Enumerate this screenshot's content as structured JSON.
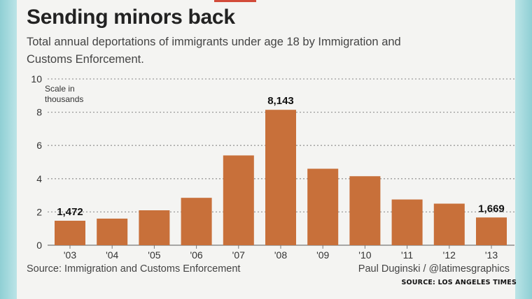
{
  "chart_title": "Sending minors back",
  "subtitle": "Total annual deportations of immigrants under age 18 by Immigration and Customs Enforcement.",
  "scale_note_line1": "Scale in",
  "scale_note_line2": "thousands",
  "source_text": "Source: Immigration and Customs Enforcement",
  "credit_text": "Paul Duginski / @latimesgraphics",
  "footer_source": "SOURCE: LOS ANGELES TIMES",
  "colors": {
    "bar": "#c8703a",
    "grid": "#9a9a9a",
    "text": "#333333"
  },
  "chart_data": {
    "type": "bar",
    "title": "Sending minors back",
    "ylabel": "Scale in thousands",
    "categories": [
      "'03",
      "'04",
      "'05",
      "'06",
      "'07",
      "'08",
      "'09",
      "'10",
      "'11",
      "'12",
      "'13"
    ],
    "values": [
      1472,
      1600,
      2100,
      2850,
      5400,
      8143,
      4600,
      4150,
      2750,
      2500,
      1669
    ],
    "yticks": [
      0,
      2,
      4,
      6,
      8,
      10
    ],
    "ylim": [
      0,
      10000
    ],
    "grid": true,
    "data_labels": [
      {
        "index": 0,
        "text": "1,472"
      },
      {
        "index": 5,
        "text": "8,143"
      },
      {
        "index": 10,
        "text": "1,669"
      }
    ]
  }
}
